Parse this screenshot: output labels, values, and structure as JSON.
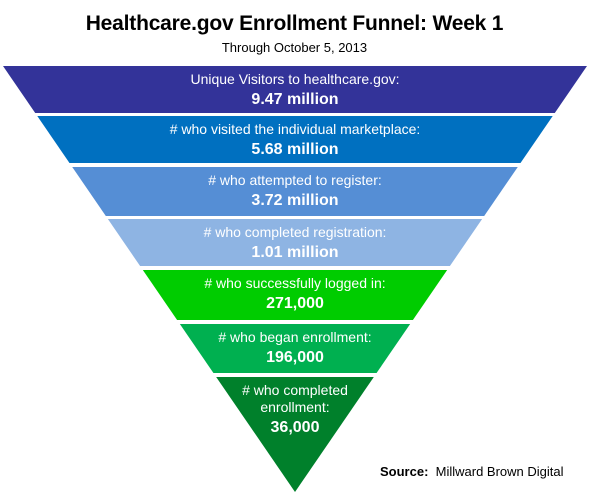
{
  "title": "Healthcare.gov Enrollment Funnel:  Week 1",
  "subtitle": "Through October 5, 2013",
  "source": {
    "label": "Source:",
    "value": "Millward Brown Digital"
  },
  "funnel": {
    "stages": [
      {
        "label": [
          "Unique Visitors to healthcare.gov:"
        ],
        "value": "9.47 million",
        "color": "#333399"
      },
      {
        "label": [
          "# who visited the individual marketplace:"
        ],
        "value": "5.68 million",
        "color": "#0070c0"
      },
      {
        "label": [
          "# who attempted to register:"
        ],
        "value": "3.72 million",
        "color": "#558ed5"
      },
      {
        "label": [
          "# who completed registration:"
        ],
        "value": "1.01 million",
        "color": "#8eb4e3"
      },
      {
        "label": [
          "# who successfully logged in:"
        ],
        "value": "271,000",
        "color": "#00cc00"
      },
      {
        "label": [
          "# who began enrollment:"
        ],
        "value": "196,000",
        "color": "#00b050"
      },
      {
        "label": [
          "# who completed",
          "enrollment:"
        ],
        "value": "36,000",
        "color": "#00802b"
      }
    ]
  }
}
